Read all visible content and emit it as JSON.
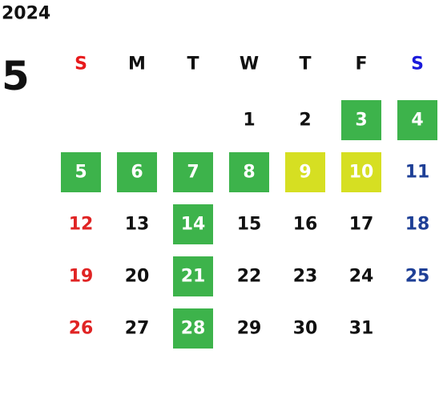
{
  "year": "2024",
  "month": "5",
  "weekdays": [
    "S",
    "M",
    "T",
    "W",
    "T",
    "F",
    "S"
  ],
  "weekday_colors": [
    "#e8191b",
    "#111111",
    "#111111",
    "#111111",
    "#111111",
    "#111111",
    "#1a1adb"
  ],
  "day_colors": [
    "#e02424",
    "#111111",
    "#111111",
    "#111111",
    "#111111",
    "#111111",
    "#1e3f96"
  ],
  "weeks": [
    [
      null,
      null,
      null,
      {
        "day": 1
      },
      {
        "day": 2
      },
      {
        "day": 3,
        "fill": "#3db34b"
      },
      {
        "day": 4,
        "fill": "#3db34b"
      }
    ],
    [
      {
        "day": 5,
        "fill": "#3db34b"
      },
      {
        "day": 6,
        "fill": "#3db34b"
      },
      {
        "day": 7,
        "fill": "#3db34b"
      },
      {
        "day": 8,
        "fill": "#3db34b"
      },
      {
        "day": 9,
        "fill": "#d6df22"
      },
      {
        "day": 10,
        "fill": "#d6df22"
      },
      {
        "day": 11
      }
    ],
    [
      {
        "day": 12
      },
      {
        "day": 13
      },
      {
        "day": 14,
        "fill": "#3db34b"
      },
      {
        "day": 15
      },
      {
        "day": 16
      },
      {
        "day": 17
      },
      {
        "day": 18
      }
    ],
    [
      {
        "day": 19
      },
      {
        "day": 20
      },
      {
        "day": 21,
        "fill": "#3db34b"
      },
      {
        "day": 22
      },
      {
        "day": 23
      },
      {
        "day": 24
      },
      {
        "day": 25
      }
    ],
    [
      {
        "day": 26
      },
      {
        "day": 27
      },
      {
        "day": 28,
        "fill": "#3db34b"
      },
      {
        "day": 29
      },
      {
        "day": 30
      },
      {
        "day": 31
      },
      null
    ]
  ]
}
